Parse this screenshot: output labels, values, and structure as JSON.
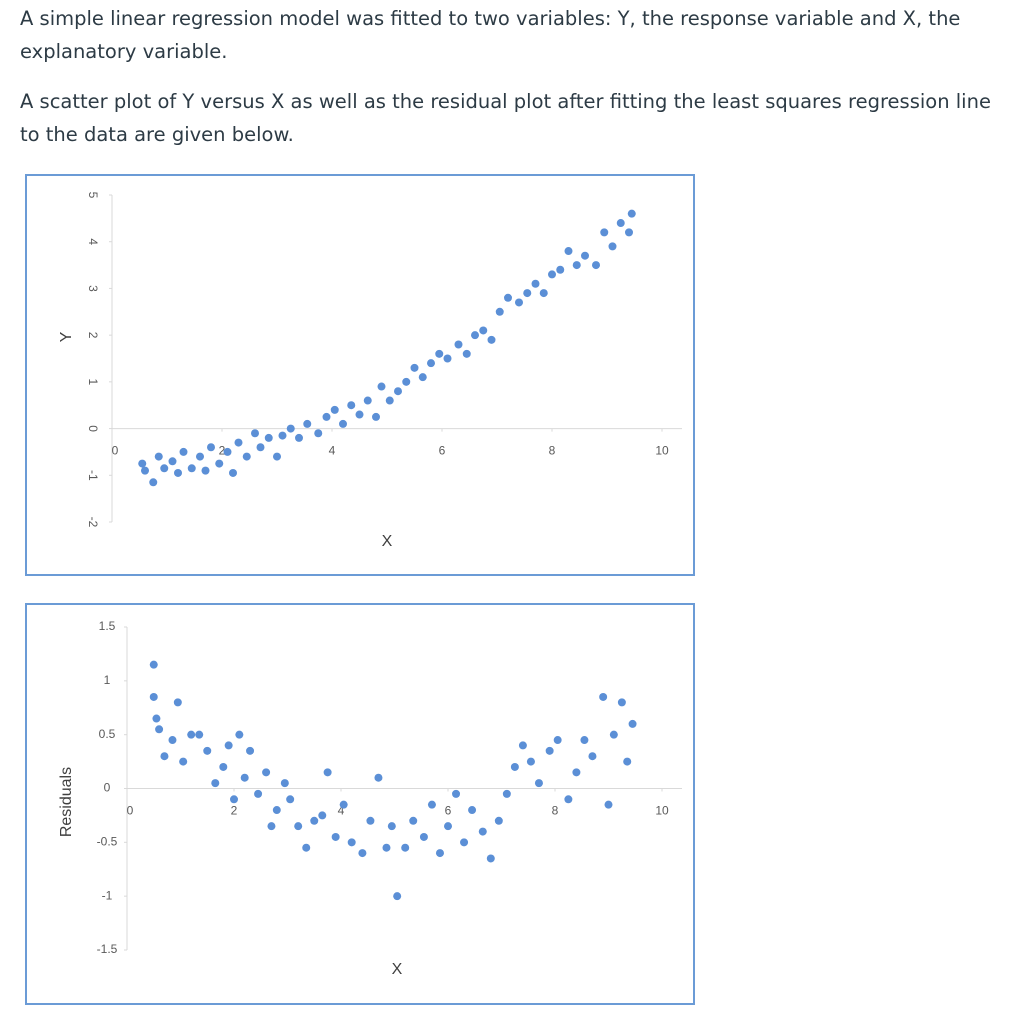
{
  "paragraphs": [
    "A simple linear regression model was fitted to two variables: Y, the response variable and X, the explanatory variable.",
    "A scatter plot of Y versus X as well as the residual plot after fitting the least squares regression line to the data are given below."
  ],
  "chart_data": [
    {
      "type": "scatter",
      "xlabel": "X",
      "ylabel": "Y",
      "color": "#5b8fd6",
      "xlim": [
        0,
        10
      ],
      "ylim": [
        -2,
        5
      ],
      "xticks": [
        0,
        2,
        4,
        6,
        8,
        10
      ],
      "yticks": [
        -2,
        -1,
        0,
        1,
        2,
        3,
        4,
        5
      ],
      "x": [
        0.55,
        0.6,
        0.75,
        0.85,
        0.95,
        1.1,
        1.2,
        1.3,
        1.45,
        1.6,
        1.7,
        1.8,
        1.95,
        2.1,
        2.2,
        2.3,
        2.45,
        2.6,
        2.7,
        2.85,
        3.0,
        3.1,
        3.25,
        3.4,
        3.55,
        3.75,
        3.9,
        4.05,
        4.2,
        4.35,
        4.5,
        4.65,
        4.8,
        4.9,
        5.05,
        5.2,
        5.35,
        5.5,
        5.65,
        5.8,
        5.95,
        6.1,
        6.3,
        6.45,
        6.6,
        6.75,
        6.9,
        7.05,
        7.2,
        7.4,
        7.55,
        7.7,
        7.85,
        8.0,
        8.15,
        8.3,
        8.45,
        8.6,
        8.8,
        8.95,
        9.1,
        9.25,
        9.4,
        9.45
      ],
      "values": [
        -0.75,
        -0.9,
        -1.15,
        -0.6,
        -0.85,
        -0.7,
        -0.95,
        -0.5,
        -0.85,
        -0.6,
        -0.9,
        -0.4,
        -0.75,
        -0.5,
        -0.95,
        -0.3,
        -0.6,
        -0.1,
        -0.4,
        -0.2,
        -0.6,
        -0.15,
        0,
        -0.2,
        0.1,
        -0.1,
        0.25,
        0.4,
        0.1,
        0.5,
        0.3,
        0.6,
        0.25,
        0.9,
        0.6,
        0.8,
        1.0,
        1.3,
        1.1,
        1.4,
        1.6,
        1.5,
        1.8,
        1.6,
        2.0,
        2.1,
        1.9,
        2.5,
        2.8,
        2.7,
        2.9,
        3.1,
        2.9,
        3.3,
        3.4,
        3.8,
        3.5,
        3.7,
        3.5,
        4.2,
        3.9,
        4.4,
        4.2,
        4.6
      ]
    },
    {
      "type": "scatter",
      "xlabel": "X",
      "ylabel": "Residuals",
      "color": "#5b8fd6",
      "xlim": [
        0,
        10
      ],
      "ylim": [
        -1.5,
        1.5
      ],
      "xticks": [
        0,
        2,
        4,
        6,
        8,
        10
      ],
      "yticks": [
        -1.5,
        -1,
        -0.5,
        0,
        0.5,
        1,
        1.5
      ],
      "x": [
        0.5,
        0.5,
        0.55,
        0.6,
        0.7,
        0.85,
        0.95,
        1.05,
        1.2,
        1.35,
        1.5,
        1.65,
        1.8,
        1.9,
        2.0,
        2.1,
        2.2,
        2.3,
        2.45,
        2.6,
        2.7,
        2.8,
        2.95,
        3.05,
        3.2,
        3.35,
        3.5,
        3.65,
        3.75,
        3.9,
        4.05,
        4.2,
        4.4,
        4.55,
        4.7,
        4.85,
        4.95,
        5.05,
        5.2,
        5.35,
        5.55,
        5.7,
        5.85,
        6.0,
        6.15,
        6.3,
        6.45,
        6.65,
        6.8,
        6.95,
        7.1,
        7.25,
        7.4,
        7.55,
        7.7,
        7.9,
        8.05,
        8.25,
        8.4,
        8.55,
        8.7,
        8.9,
        9.0,
        9.1,
        9.25,
        9.35,
        9.45
      ],
      "values": [
        1.15,
        0.85,
        0.65,
        0.55,
        0.3,
        0.45,
        0.8,
        0.25,
        0.5,
        0.5,
        0.35,
        0.05,
        0.2,
        0.4,
        -0.1,
        0.5,
        0.1,
        0.35,
        -0.05,
        0.15,
        -0.35,
        -0.2,
        0.05,
        -0.1,
        -0.35,
        -0.55,
        -0.3,
        -0.25,
        0.15,
        -0.45,
        -0.15,
        -0.5,
        -0.6,
        -0.3,
        0.1,
        -0.55,
        -0.35,
        -1.0,
        -0.55,
        -0.3,
        -0.45,
        -0.15,
        -0.6,
        -0.35,
        -0.05,
        -0.5,
        -0.2,
        -0.4,
        -0.65,
        -0.3,
        -0.05,
        0.2,
        0.4,
        0.25,
        0.05,
        0.35,
        0.45,
        -0.1,
        0.15,
        0.45,
        0.3,
        0.85,
        -0.15,
        0.5,
        0.8,
        0.25,
        0.6
      ]
    }
  ]
}
